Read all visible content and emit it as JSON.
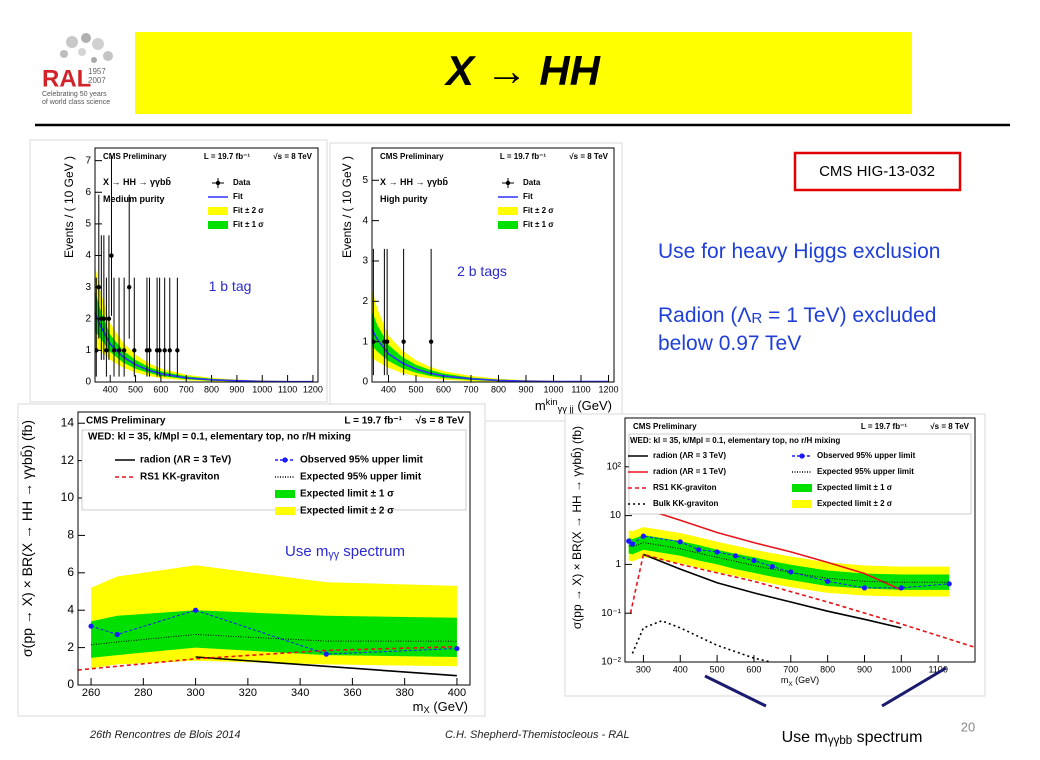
{
  "logo": {
    "text": "RAL",
    "years": [
      "1957",
      "2007"
    ],
    "tagline": [
      "Celebrating 50 years",
      "of world class science"
    ]
  },
  "title": "X → HH",
  "reference": "CMS HIG-13-032",
  "notes": [
    [
      {
        "t": "Use for heavy Higgs exclusion"
      }
    ],
    [
      {
        "t": "Radion (Λ"
      },
      {
        "sub": "R"
      },
      {
        "t": " = 1 TeV) excluded"
      }
    ],
    [
      {
        "t": "below 0.97 TeV"
      }
    ]
  ],
  "footer": {
    "event": "26th Rencontres de Blois 2014",
    "author": "C.H. Shepherd-Themistocleous - RAL",
    "page": 20
  },
  "chart_data": [
    {
      "type": "scatter",
      "experiment": "CMS Preliminary",
      "luminosity": "L = 19.7 fb⁻¹",
      "energy": "√s = 8 TeV",
      "subtitle": [
        [
          {
            "t": "X → HH → γγbb̄"
          }
        ],
        [
          {
            "t": "Medium purity"
          }
        ]
      ],
      "annotation": [
        {
          "t": "1 b tag"
        }
      ],
      "ylabel": [
        {
          "t": "Events / ( 10 GeV )"
        }
      ],
      "xlim": [
        340,
        1220
      ],
      "xticks": [
        400,
        500,
        600,
        700,
        800,
        900,
        1000,
        1100,
        1200
      ],
      "ylim": [
        0,
        7.4
      ],
      "yticks": [
        0,
        1,
        2,
        3,
        4,
        5,
        6,
        7
      ],
      "series": [
        {
          "name": "Data",
          "color": "#000000",
          "style": "points",
          "x": [
            345,
            355,
            365,
            375,
            385,
            395,
            405,
            415,
            435,
            455,
            475,
            495,
            545,
            555,
            585,
            595,
            615,
            635,
            665
          ],
          "values": [
            1,
            3,
            2,
            2,
            1,
            2,
            4,
            1,
            1,
            1,
            3,
            1,
            1,
            1,
            1,
            1,
            1,
            1,
            1
          ],
          "error_low": [
            0.83,
            1.63,
            1.3,
            1.3,
            0.83,
            1.3,
            1.91,
            0.83,
            0.83,
            0.83,
            1.63,
            0.83,
            0.83,
            0.83,
            0.83,
            0.83,
            0.83,
            0.83,
            0.83
          ],
          "error_high": [
            2.3,
            2.92,
            2.64,
            2.64,
            2.3,
            2.64,
            3.16,
            2.3,
            2.3,
            2.3,
            2.92,
            2.3,
            2.3,
            2.3,
            2.3,
            2.3,
            2.3,
            2.3,
            2.3
          ]
        },
        {
          "name": "Fit",
          "color": "#3030ff",
          "style": "line",
          "x": [
            340,
            360,
            400,
            450,
            500,
            550,
            600,
            700,
            800,
            900,
            1000,
            1100,
            1200
          ],
          "values": [
            2.2,
            1.8,
            1.2,
            0.8,
            0.55,
            0.38,
            0.26,
            0.13,
            0.07,
            0.04,
            0.02,
            0.01,
            0.01
          ]
        },
        {
          "name": "Fit ± 2 σ",
          "color": "#ffff00",
          "style": "band-outer",
          "x": [
            340,
            360,
            400,
            450,
            500,
            550,
            600,
            700,
            800,
            900,
            1000,
            1100,
            1200
          ],
          "lower": [
            1.1,
            1.0,
            0.7,
            0.46,
            0.3,
            0.2,
            0.12,
            0.05,
            0.02,
            0.01,
            0,
            0,
            0
          ],
          "upper": [
            3.7,
            2.9,
            1.85,
            1.25,
            0.87,
            0.6,
            0.43,
            0.23,
            0.13,
            0.08,
            0.05,
            0.03,
            0.03
          ]
        },
        {
          "name": "Fit ± 1 σ",
          "color": "#00e000",
          "style": "band-inner",
          "x": [
            340,
            360,
            400,
            450,
            500,
            550,
            600,
            700,
            800,
            900,
            1000,
            1100,
            1200
          ],
          "lower": [
            1.6,
            1.4,
            0.95,
            0.62,
            0.42,
            0.29,
            0.19,
            0.09,
            0.04,
            0.02,
            0.01,
            0,
            0
          ],
          "upper": [
            2.9,
            2.3,
            1.5,
            1.0,
            0.7,
            0.48,
            0.34,
            0.18,
            0.1,
            0.06,
            0.03,
            0.02,
            0.02
          ]
        }
      ]
    },
    {
      "type": "scatter",
      "experiment": "CMS Preliminary",
      "luminosity": "L = 19.7 fb⁻¹",
      "energy": "√s = 8 TeV",
      "subtitle": [
        [
          {
            "t": "X → HH → γγbb̄"
          }
        ],
        [
          {
            "t": "High purity"
          }
        ]
      ],
      "annotation": [
        {
          "t": "2 b tags"
        }
      ],
      "ylabel": [
        {
          "t": "Events / ( 10 GeV )"
        }
      ],
      "xlabel": [
        {
          "t": "m"
        },
        {
          "sup": "kin"
        },
        {
          "sub": "γγ jj"
        },
        {
          "t": " (GeV)"
        }
      ],
      "xlim": [
        340,
        1220
      ],
      "xticks": [
        400,
        500,
        600,
        700,
        800,
        900,
        1000,
        1100,
        1200
      ],
      "ylim": [
        0,
        5.8
      ],
      "yticks": [
        0,
        1,
        2,
        3,
        4,
        5
      ],
      "series": [
        {
          "name": "Data",
          "color": "#000000",
          "style": "points",
          "x": [
            345,
            385,
            395,
            455,
            555
          ],
          "values": [
            1,
            1,
            1,
            1,
            1
          ],
          "error_low": [
            0.83,
            0.83,
            0.83,
            0.83,
            0.83
          ],
          "error_high": [
            2.3,
            2.3,
            2.3,
            2.3,
            2.3
          ]
        },
        {
          "name": "Fit",
          "color": "#3030ff",
          "style": "line",
          "x": [
            340,
            360,
            400,
            450,
            500,
            550,
            600,
            700,
            800,
            900,
            1000,
            1100,
            1200
          ],
          "values": [
            1.3,
            1.05,
            0.7,
            0.47,
            0.32,
            0.22,
            0.15,
            0.08,
            0.04,
            0.02,
            0.01,
            0.01,
            0.01
          ]
        },
        {
          "name": "Fit ± 2 σ",
          "color": "#ffff00",
          "style": "band-outer",
          "x": [
            340,
            360,
            400,
            450,
            500,
            550,
            600,
            700,
            800,
            900,
            1000,
            1100,
            1200
          ],
          "lower": [
            0.6,
            0.5,
            0.35,
            0.22,
            0.14,
            0.09,
            0.06,
            0.02,
            0.01,
            0,
            0,
            0,
            0
          ],
          "upper": [
            2.3,
            1.8,
            1.15,
            0.78,
            0.54,
            0.38,
            0.27,
            0.15,
            0.08,
            0.05,
            0.03,
            0.02,
            0.02
          ]
        },
        {
          "name": "Fit ± 1 σ",
          "color": "#00e000",
          "style": "band-inner",
          "x": [
            340,
            360,
            400,
            450,
            500,
            550,
            600,
            700,
            800,
            900,
            1000,
            1100,
            1200
          ],
          "lower": [
            0.9,
            0.75,
            0.52,
            0.34,
            0.23,
            0.15,
            0.1,
            0.05,
            0.02,
            0.01,
            0,
            0,
            0
          ],
          "upper": [
            1.75,
            1.4,
            0.92,
            0.62,
            0.43,
            0.3,
            0.21,
            0.11,
            0.06,
            0.03,
            0.02,
            0.02,
            0.02
          ]
        }
      ]
    },
    {
      "type": "line",
      "experiment": "CMS Preliminary",
      "luminosity": "L = 19.7 fb⁻¹",
      "energy": "√s = 8 TeV",
      "model": "WED: kl = 35, k/Mpl = 0.1, elementary top, no r/H mixing",
      "annotation": [
        {
          "t": "Use m"
        },
        {
          "sub": "γγ"
        },
        {
          "t": " spectrum"
        }
      ],
      "ylabel": [
        {
          "t": "σ(pp → X) × BR(X → HH → γγbb̄) (fb)"
        }
      ],
      "xlabel": [
        {
          "t": "m"
        },
        {
          "sub": "X"
        },
        {
          "t": " (GeV)"
        }
      ],
      "xlim": [
        255,
        405
      ],
      "xticks": [
        260,
        280,
        300,
        320,
        340,
        360,
        380,
        400
      ],
      "ylim": [
        0,
        14.6
      ],
      "yticks": [
        0,
        2,
        4,
        6,
        8,
        10,
        12,
        14
      ],
      "series": [
        {
          "name": "radion (ΛR = 3 TeV)",
          "color": "#000000",
          "style": "line",
          "x": [
            300,
            400
          ],
          "values": [
            1.5,
            0.5
          ]
        },
        {
          "name": "RS1 KK-graviton",
          "color": "#e8141b",
          "style": "dashed",
          "x": [
            255,
            300,
            350,
            400
          ],
          "values": [
            0.8,
            1.4,
            1.85,
            2.05
          ]
        },
        {
          "name": "Observed 95% upper limit",
          "color": "#1a1aff",
          "style": "markers",
          "x": [
            260,
            270,
            300,
            350,
            400
          ],
          "values": [
            3.15,
            2.7,
            4.0,
            1.65,
            1.95
          ]
        },
        {
          "name": "Expected 95% upper limit",
          "color": "#000000",
          "style": "fine-dotted",
          "x": [
            260,
            270,
            300,
            350,
            400
          ],
          "values": [
            2.15,
            2.3,
            2.7,
            2.35,
            2.35
          ]
        },
        {
          "name": "Expected limit ± 1 σ",
          "color": "#00e000",
          "style": "band-inner",
          "x": [
            260,
            270,
            300,
            350,
            400
          ],
          "lower": [
            1.45,
            1.6,
            2.0,
            1.6,
            1.5
          ],
          "upper": [
            3.4,
            3.7,
            4.0,
            3.7,
            3.6
          ]
        },
        {
          "name": "Expected limit ± 2 σ",
          "color": "#ffff00",
          "style": "band-outer",
          "x": [
            260,
            270,
            300,
            350,
            400
          ],
          "lower": [
            0.9,
            1.1,
            1.3,
            1.1,
            1.0
          ],
          "upper": [
            5.2,
            5.8,
            6.4,
            5.5,
            5.3
          ]
        }
      ]
    },
    {
      "type": "line",
      "experiment": "CMS Preliminary",
      "luminosity": "L = 19.7 fb⁻¹",
      "energy": "√s = 8 TeV",
      "model": "WED: kl = 35, k/Mpl = 0.1, elementary top, no r/H mixing",
      "annotation": [
        {
          "t": "Use m"
        },
        {
          "sub": "γγbb"
        },
        {
          "t": " spectrum"
        }
      ],
      "ylabel": [
        {
          "t": "σ(pp → X) × BR(X → HH → γγbb̄) (fb)"
        }
      ],
      "xlabel": [
        {
          "t": "m"
        },
        {
          "sub": "X"
        },
        {
          "t": " (GeV)"
        }
      ],
      "log_y": true,
      "xlim": [
        250,
        1200
      ],
      "xticks": [
        300,
        400,
        500,
        600,
        700,
        800,
        900,
        1000,
        1100
      ],
      "ylim": [
        0.01,
        1000
      ],
      "yticks": [
        {
          "value": 0.01,
          "label": "10⁻²"
        },
        {
          "value": 0.1,
          "label": "10⁻¹"
        },
        1,
        10,
        {
          "value": 100,
          "label": "10²"
        }
      ],
      "series": [
        {
          "name": "radion (ΛR = 3 TeV)",
          "color": "#000000",
          "style": "line",
          "x": [
            300,
            400,
            500,
            600,
            700,
            800,
            900,
            1000
          ],
          "values": [
            1.6,
            0.8,
            0.42,
            0.26,
            0.17,
            0.11,
            0.075,
            0.05
          ]
        },
        {
          "name": "radion (ΛR = 1 TeV)",
          "color": "#e8141b",
          "style": "line",
          "x": [
            300,
            400,
            500,
            600,
            700,
            800,
            900,
            1000
          ],
          "values": [
            14,
            8,
            4.5,
            2.8,
            1.8,
            1.1,
            0.65,
            0.3
          ]
        },
        {
          "name": "RS1 KK-graviton",
          "color": "#e8141b",
          "style": "dashed",
          "x": [
            265,
            300,
            400,
            600,
            800,
            1000,
            1200
          ],
          "values": [
            0.1,
            1.6,
            1.0,
            0.45,
            0.17,
            0.06,
            0.02
          ]
        },
        {
          "name": "Bulk KK-graviton",
          "color": "#000000",
          "style": "dotted",
          "x": [
            270,
            300,
            350,
            400,
            500,
            600,
            700
          ],
          "values": [
            0.015,
            0.05,
            0.07,
            0.05,
            0.022,
            0.012,
            0.008
          ]
        },
        {
          "name": "Observed 95% upper limit",
          "color": "#1a1aff",
          "style": "markers",
          "x": [
            260,
            270,
            300,
            400,
            450,
            500,
            550,
            600,
            650,
            700,
            800,
            900,
            1000,
            1130
          ],
          "values": [
            3.0,
            2.6,
            3.8,
            2.9,
            2.0,
            1.8,
            1.5,
            1.2,
            0.9,
            0.7,
            0.45,
            0.33,
            0.33,
            0.4
          ]
        },
        {
          "name": "Expected 95% upper limit",
          "color": "#000000",
          "style": "fine-dotted",
          "x": [
            260,
            270,
            300,
            400,
            450,
            500,
            550,
            600,
            650,
            700,
            800,
            900,
            1000,
            1130
          ],
          "values": [
            2.4,
            2.3,
            2.8,
            2.1,
            1.7,
            1.4,
            1.15,
            0.95,
            0.8,
            0.68,
            0.52,
            0.45,
            0.43,
            0.43
          ]
        },
        {
          "name": "Expected limit ± 1 σ",
          "color": "#00e000",
          "style": "band-inner",
          "x": [
            260,
            270,
            300,
            400,
            450,
            500,
            550,
            600,
            650,
            700,
            800,
            900,
            1000,
            1130
          ],
          "lower": [
            1.7,
            1.6,
            2.0,
            1.5,
            1.2,
            1.0,
            0.8,
            0.67,
            0.56,
            0.48,
            0.36,
            0.32,
            0.3,
            0.3
          ],
          "upper": [
            3.5,
            3.3,
            4.0,
            3.0,
            2.5,
            2.0,
            1.65,
            1.4,
            1.15,
            0.98,
            0.75,
            0.65,
            0.62,
            0.62
          ]
        },
        {
          "name": "Expected limit ± 2 σ",
          "color": "#ffff00",
          "style": "band-outer",
          "x": [
            260,
            270,
            300,
            400,
            450,
            500,
            550,
            600,
            650,
            700,
            800,
            900,
            1000,
            1130
          ],
          "lower": [
            1.2,
            1.15,
            1.4,
            1.05,
            0.85,
            0.7,
            0.58,
            0.48,
            0.4,
            0.34,
            0.26,
            0.23,
            0.22,
            0.22
          ],
          "upper": [
            5.0,
            4.8,
            5.8,
            4.4,
            3.6,
            2.9,
            2.4,
            2.0,
            1.7,
            1.45,
            1.1,
            0.95,
            0.9,
            0.9
          ]
        }
      ]
    }
  ]
}
